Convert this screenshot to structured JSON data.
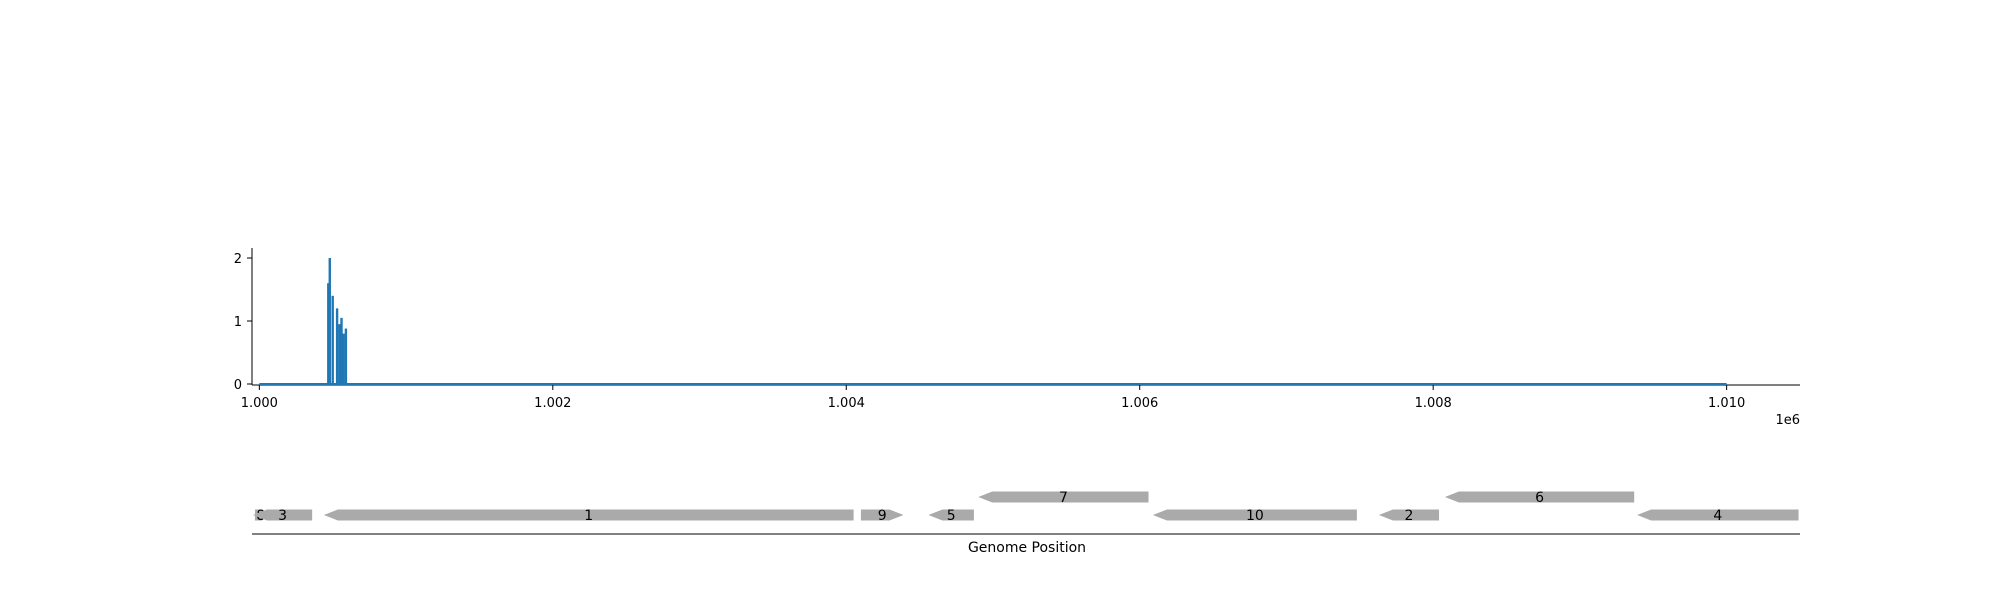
{
  "chart_data": [
    {
      "type": "bar",
      "title": "",
      "xlabel": "",
      "ylabel": "",
      "x_offset_label": "1e6",
      "xlim": [
        999950,
        1010500
      ],
      "ylim": [
        0,
        2.2
      ],
      "xticks": [
        1000000,
        1002000,
        1004000,
        1006000,
        1008000,
        1010000
      ],
      "xtick_labels": [
        "1.000",
        "1.002",
        "1.004",
        "1.006",
        "1.008",
        "1.010"
      ],
      "yticks": [
        0,
        1,
        2
      ],
      "ytick_labels": [
        "0",
        "1",
        "2"
      ],
      "baseline_range": [
        1000000,
        1010000
      ],
      "color": "#1f77b4",
      "grid": false,
      "bars": [
        {
          "x": 1000470,
          "y": 1.6
        },
        {
          "x": 1000480,
          "y": 2.0
        },
        {
          "x": 1000500,
          "y": 1.4
        },
        {
          "x": 1000530,
          "y": 1.2
        },
        {
          "x": 1000545,
          "y": 0.95
        },
        {
          "x": 1000560,
          "y": 1.05
        },
        {
          "x": 1000575,
          "y": 0.8
        },
        {
          "x": 1000590,
          "y": 0.88
        }
      ]
    },
    {
      "type": "gene-track",
      "xlabel": "Genome Position",
      "xlim": [
        999950,
        1010500
      ],
      "color": "#aaaaaa",
      "genes": [
        {
          "label": "8",
          "start": 999970,
          "end": 1000050,
          "strand": "+",
          "row": 0
        },
        {
          "label": "3",
          "start": 999950,
          "end": 1000360,
          "strand": "-",
          "row": 0
        },
        {
          "label": "1",
          "start": 1000440,
          "end": 1004050,
          "strand": "-",
          "row": 0
        },
        {
          "label": "9",
          "start": 1004100,
          "end": 1004390,
          "strand": "+",
          "row": 0
        },
        {
          "label": "5",
          "start": 1004560,
          "end": 1004870,
          "strand": "-",
          "row": 0
        },
        {
          "label": "7",
          "start": 1004900,
          "end": 1006060,
          "strand": "-",
          "row": 1
        },
        {
          "label": "10",
          "start": 1006090,
          "end": 1007480,
          "strand": "-",
          "row": 0
        },
        {
          "label": "2",
          "start": 1007630,
          "end": 1008040,
          "strand": "-",
          "row": 0
        },
        {
          "label": "6",
          "start": 1008080,
          "end": 1009370,
          "strand": "-",
          "row": 1
        },
        {
          "label": "4",
          "start": 1009390,
          "end": 1010490,
          "strand": "-",
          "row": 0
        }
      ]
    }
  ]
}
